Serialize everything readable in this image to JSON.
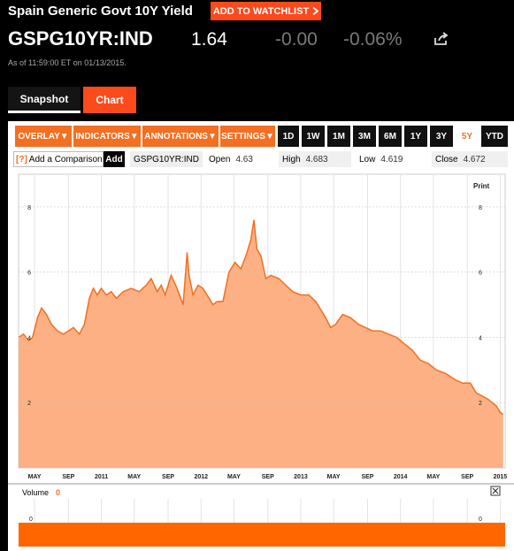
{
  "header": {
    "title": "Spain Generic Govt 10Y Yield",
    "watchlist_label": "ADD TO WATCHLIST",
    "ticker": "GSPG10YR:IND",
    "price": "1.64",
    "change": "-0.00",
    "change_pct": "-0.06%",
    "as_of": "As of 11:59:00 ET on 01/13/2015."
  },
  "tabs": {
    "snapshot": "Snapshot",
    "chart": "Chart"
  },
  "toolbar": {
    "menus": [
      "OVERLAY",
      "INDICATORS",
      "ANNOTATIONS",
      "SETTINGS"
    ],
    "ranges": [
      "1D",
      "1W",
      "1M",
      "3M",
      "6M",
      "1Y",
      "3Y",
      "5Y",
      "YTD"
    ],
    "selected_range": "5Y"
  },
  "compare": {
    "placeholder": "Add a Comparison",
    "add_label": "Add",
    "help": "[?]"
  },
  "quote_row": {
    "symbol": "GSPG10YR:IND",
    "open_label": "Open",
    "open": "4.63",
    "high_label": "High",
    "high": "4.683",
    "low_label": "Low",
    "low": "4.619",
    "close_label": "Close",
    "close": "4.672"
  },
  "print_label": "Print",
  "volume": {
    "label": "Volume",
    "value": "0"
  },
  "colors": {
    "accent": "#f36f21",
    "button": "#fb4a1c",
    "area_fill": "#fdb083",
    "line": "#f36f21"
  },
  "chart_data": {
    "type": "area",
    "y_ticks": [
      "2",
      "4",
      "6",
      "8"
    ],
    "ylim": [
      0,
      9
    ],
    "x_ticks": [
      "MAY",
      "SEP",
      "2011",
      "MAY",
      "SEP",
      "2012",
      "MAY",
      "SEP",
      "2013",
      "MAY",
      "SEP",
      "2014",
      "MAY",
      "SEP",
      "2015"
    ],
    "x_range": [
      2010.17,
      2015.05
    ],
    "series": [
      {
        "x": [
          2010.17,
          2010.22,
          2010.27,
          2010.31,
          2010.36,
          2010.4,
          2010.45,
          2010.5,
          2010.56,
          2010.62,
          2010.67,
          2010.72,
          2010.78,
          2010.83,
          2010.88,
          2010.92,
          2010.96,
          2011.0,
          2011.05,
          2011.1,
          2011.15,
          2011.22,
          2011.3,
          2011.38,
          2011.45,
          2011.5,
          2011.56,
          2011.6,
          2011.64,
          2011.7,
          2011.76,
          2011.82,
          2011.86,
          2011.88,
          2011.92,
          2011.97,
          2012.02,
          2012.08,
          2012.12,
          2012.16,
          2012.22,
          2012.28,
          2012.34,
          2012.4,
          2012.45,
          2012.5,
          2012.53,
          2012.56,
          2012.6,
          2012.65,
          2012.7,
          2012.78,
          2012.85,
          2012.92,
          2013.0,
          2013.08,
          2013.15,
          2013.25,
          2013.3,
          2013.35,
          2013.42,
          2013.5,
          2013.58,
          2013.65,
          2013.72,
          2013.8,
          2013.88,
          2013.96,
          2014.04,
          2014.12,
          2014.2,
          2014.28,
          2014.36,
          2014.45,
          2014.55,
          2014.62,
          2014.7,
          2014.76,
          2014.82,
          2014.88,
          2014.92,
          2014.96,
          2015.0,
          2015.03
        ],
        "y": [
          4.0,
          4.1,
          3.9,
          4.0,
          4.6,
          4.9,
          4.7,
          4.4,
          4.2,
          4.1,
          4.2,
          4.3,
          4.1,
          4.4,
          5.2,
          5.5,
          5.3,
          5.5,
          5.3,
          5.4,
          5.2,
          5.4,
          5.5,
          5.4,
          5.6,
          5.8,
          5.4,
          5.6,
          5.3,
          5.9,
          5.5,
          5.0,
          6.6,
          5.9,
          5.3,
          5.6,
          5.5,
          5.2,
          5.0,
          5.1,
          5.1,
          6.0,
          6.3,
          6.1,
          6.5,
          7.0,
          7.6,
          6.7,
          6.5,
          5.8,
          5.9,
          5.8,
          5.6,
          5.4,
          5.3,
          5.3,
          5.1,
          4.6,
          4.3,
          4.4,
          4.7,
          4.6,
          4.4,
          4.3,
          4.2,
          4.2,
          4.1,
          4.0,
          3.8,
          3.6,
          3.3,
          3.2,
          3.0,
          2.9,
          2.7,
          2.6,
          2.6,
          2.3,
          2.2,
          2.1,
          2.0,
          1.9,
          1.7,
          1.64
        ]
      }
    ],
    "volume_ticks": [
      "0",
      "0"
    ]
  }
}
